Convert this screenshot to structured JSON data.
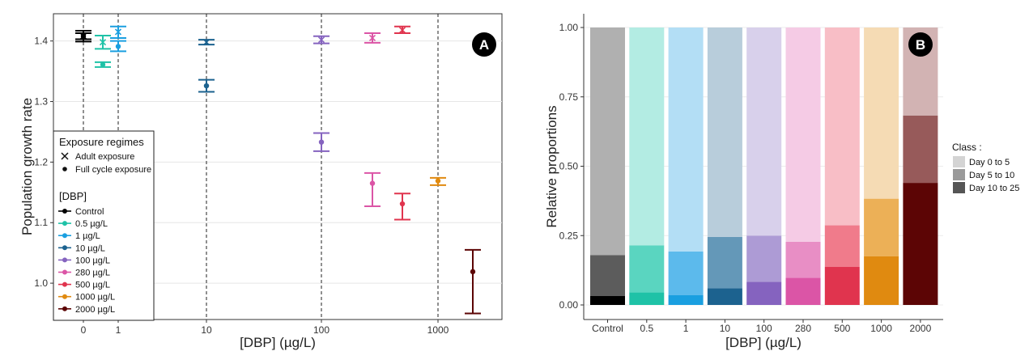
{
  "panelA": {
    "badge": "A",
    "xlabel": "[DBP] (µg/L)",
    "ylabel": "Population growth rate",
    "xticks": [
      "0",
      "1",
      "10",
      "100",
      "1000"
    ],
    "yticks": [
      "1.0",
      "1.1",
      "1.2",
      "1.3",
      "1.4"
    ],
    "legend": {
      "title1": "Exposure regimes",
      "regimes": [
        "Adult exposure",
        "Full cycle exposure"
      ],
      "title2": "[DBP]",
      "doses": [
        {
          "label": "Control",
          "color": "#000000"
        },
        {
          "label": "0.5 µg/L",
          "color": "#1fc2a7"
        },
        {
          "label": "1 µg/L",
          "color": "#1a9fe0"
        },
        {
          "label": "10 µg/L",
          "color": "#1c628f"
        },
        {
          "label": "100 µg/L",
          "color": "#8563bf"
        },
        {
          "label": "280 µg/L",
          "color": "#db55a6"
        },
        {
          "label": "500 µg/L",
          "color": "#e0344e"
        },
        {
          "label": "1000 µg/L",
          "color": "#e08a10"
        },
        {
          "label": "2000 µg/L",
          "color": "#5c0505"
        }
      ]
    }
  },
  "panelB": {
    "badge": "B",
    "xlabel": "[DBP] (µg/L)",
    "ylabel": "Relative proportions",
    "yticks": [
      "0.00",
      "0.25",
      "0.50",
      "0.75",
      "1.00"
    ],
    "legend_title": "Class :",
    "classes": [
      "Day 0 to 5",
      "Day 5 to 10",
      "Day 10 to 25"
    ]
  },
  "chart_data": [
    {
      "type": "scatter",
      "title": "",
      "xlabel": "[DBP] (µg/L)",
      "ylabel": "Population growth rate",
      "x_scale": "log",
      "ylim": [
        0.94,
        1.445
      ],
      "series": [
        {
          "name": "Adult exposure",
          "marker": "x",
          "points": [
            {
              "dose": "Control",
              "x": 0,
              "y": 1.408,
              "lo": 1.399,
              "hi": 1.417
            },
            {
              "dose": "0.5 µg/L",
              "x": 0.5,
              "y": 1.398,
              "lo": 1.387,
              "hi": 1.409
            },
            {
              "dose": "1 µg/L",
              "x": 1,
              "y": 1.415,
              "lo": 1.405,
              "hi": 1.424
            },
            {
              "dose": "10 µg/L",
              "x": 10,
              "y": 1.398,
              "lo": 1.394,
              "hi": 1.402
            },
            {
              "dose": "100 µg/L",
              "x": 100,
              "y": 1.402,
              "lo": 1.396,
              "hi": 1.408
            },
            {
              "dose": "280 µg/L",
              "x": 280,
              "y": 1.405,
              "lo": 1.397,
              "hi": 1.413
            },
            {
              "dose": "500 µg/L",
              "x": 500,
              "y": 1.418,
              "lo": 1.413,
              "hi": 1.424
            }
          ]
        },
        {
          "name": "Full cycle exposure",
          "marker": "dot",
          "points": [
            {
              "dose": "Control",
              "x": 0,
              "y": 1.408,
              "lo": 1.403,
              "hi": 1.413
            },
            {
              "dose": "0.5 µg/L",
              "x": 0.5,
              "y": 1.361,
              "lo": 1.357,
              "hi": 1.365
            },
            {
              "dose": "1 µg/L",
              "x": 1,
              "y": 1.391,
              "lo": 1.383,
              "hi": 1.4
            },
            {
              "dose": "10 µg/L",
              "x": 10,
              "y": 1.326,
              "lo": 1.316,
              "hi": 1.336
            },
            {
              "dose": "100 µg/L",
              "x": 100,
              "y": 1.233,
              "lo": 1.218,
              "hi": 1.248
            },
            {
              "dose": "280 µg/L",
              "x": 280,
              "y": 1.165,
              "lo": 1.127,
              "hi": 1.182
            },
            {
              "dose": "500 µg/L",
              "x": 500,
              "y": 1.131,
              "lo": 1.105,
              "hi": 1.148
            },
            {
              "dose": "1000 µg/L",
              "x": 1000,
              "y": 1.169,
              "lo": 1.162,
              "hi": 1.174
            },
            {
              "dose": "2000 µg/L",
              "x": 2000,
              "y": 1.019,
              "lo": 0.95,
              "hi": 1.055
            }
          ]
        }
      ],
      "reference_lines_x": [
        0,
        1,
        10,
        100,
        1000
      ]
    },
    {
      "type": "bar",
      "stacked": true,
      "title": "",
      "xlabel": "[DBP] (µg/L)",
      "ylabel": "Relative proportions",
      "ylim": [
        0,
        1
      ],
      "categories": [
        "Control",
        "0.5",
        "1",
        "10",
        "100",
        "280",
        "500",
        "1000",
        "2000"
      ],
      "series": [
        {
          "name": "Day 0 to 5",
          "values": [
            0.82,
            0.785,
            0.807,
            0.755,
            0.75,
            0.772,
            0.713,
            0.617,
            0.317
          ]
        },
        {
          "name": "Day 5 to 10",
          "values": [
            0.147,
            0.17,
            0.157,
            0.185,
            0.167,
            0.13,
            0.15,
            0.208,
            0.243
          ]
        },
        {
          "name": "Day 10 to 25",
          "values": [
            0.033,
            0.045,
            0.036,
            0.06,
            0.083,
            0.098,
            0.137,
            0.175,
            0.44
          ]
        }
      ],
      "bar_colors": [
        [
          "#b0b0b0",
          "#5c5c5c",
          "#000000"
        ],
        [
          "#b3ece3",
          "#5ad5c0",
          "#1fc2a7"
        ],
        [
          "#b3def5",
          "#5cbaec",
          "#1a9fe0"
        ],
        [
          "#b8cddb",
          "#6498b8",
          "#1c628f"
        ],
        [
          "#d8d0eb",
          "#ad9bd5",
          "#8563bf"
        ],
        [
          "#f5cbe5",
          "#e88ec5",
          "#db55a6"
        ],
        [
          "#f8bec6",
          "#f07b8b",
          "#e0344e"
        ],
        [
          "#f5dbb4",
          "#ecb057",
          "#e08a10"
        ],
        [
          "#d2b3b3",
          "#975a5a",
          "#5c0505"
        ]
      ]
    }
  ]
}
